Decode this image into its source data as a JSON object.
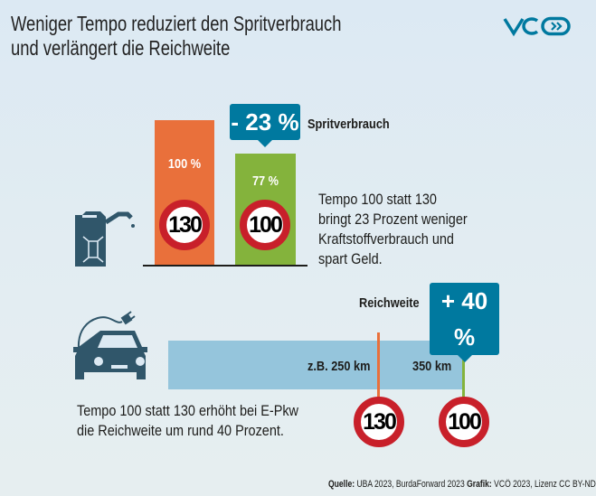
{
  "title": {
    "line1": "Weniger Tempo reduziert den Spritverbrauch",
    "line2": "und verlängert die Reichweite"
  },
  "logo": {
    "text": "VCÖ",
    "color": "#00799f"
  },
  "fuel": {
    "icon": "fuel-canister-icon",
    "bars": [
      {
        "label": "100 %",
        "speed": "130",
        "color": "#e9703b"
      },
      {
        "label": "77 %",
        "speed": "100",
        "color": "#84b33c"
      }
    ],
    "badge": "- 23 %",
    "badge_label": "Spritverbrauch",
    "text": [
      "Tempo 100 statt 130",
      "bringt 23 Prozent weniger",
      "Kraftstoffverbrauch und",
      "spart Geld."
    ]
  },
  "range": {
    "icon": "electric-car-icon",
    "bar_color": "#95c5dc",
    "mark1": {
      "label": "z.B. 250 km",
      "speed": "130",
      "color": "#e9703b"
    },
    "mark2": {
      "label": "350 km",
      "speed": "100",
      "color": "#84b33c"
    },
    "badge": "+ 40 %",
    "badge_label": "Reichweite",
    "text": [
      "Tempo 100 statt 130 erhöht bei E-Pkw",
      "die Reichweite um rund 40 Prozent."
    ]
  },
  "footer": {
    "source_label": "Quelle:",
    "source": "UBA 2023, BurdaForward 2023",
    "graphic_label": "Grafik:",
    "graphic": "VCÖ 2023, Lizenz CC BY-ND"
  },
  "chart_data": [
    {
      "type": "bar",
      "categories": [
        "130",
        "100"
      ],
      "values": [
        100,
        77
      ],
      "unit": "%",
      "annotation": "- 23 %"
    },
    {
      "type": "bar",
      "orientation": "horizontal",
      "categories": [
        "130",
        "100"
      ],
      "values": [
        250,
        350
      ],
      "unit": "km",
      "annotation": "+ 40 %"
    }
  ]
}
